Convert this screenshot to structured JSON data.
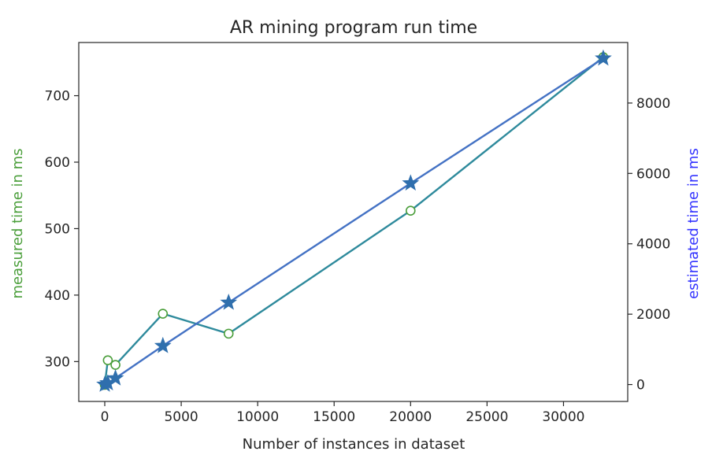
{
  "chart_data": {
    "type": "line",
    "title": "AR mining program run time",
    "xlabel": "Number of instances in dataset",
    "ylabel_left": "measured time in ms",
    "ylabel_right": "estimated time in ms",
    "xlim": [
      -1700,
      34200
    ],
    "ylim_left": [
      240,
      780
    ],
    "ylim_right": [
      -480,
      9720
    ],
    "x_ticks": [
      0,
      5000,
      10000,
      15000,
      20000,
      25000,
      30000
    ],
    "x_tick_labels": [
      "0",
      "5000",
      "10000",
      "15000",
      "20000",
      "25000",
      "30000"
    ],
    "y_left_ticks": [
      300,
      400,
      500,
      600,
      700
    ],
    "y_left_tick_labels": [
      "300",
      "400",
      "500",
      "600",
      "700"
    ],
    "y_right_ticks": [
      0,
      2000,
      4000,
      6000,
      8000
    ],
    "y_right_tick_labels": [
      "0",
      "2000",
      "4000",
      "6000",
      "8000"
    ],
    "grid": false,
    "series": [
      {
        "axis": "left",
        "marker": "circle",
        "color": "#2e8a9c",
        "marker_edge": "#4a9e3a",
        "x": [
          0,
          200,
          700,
          3800,
          8100,
          20000,
          32600
        ],
        "y": [
          265,
          302,
          295,
          372,
          342,
          527,
          758
        ]
      },
      {
        "axis": "right",
        "marker": "star",
        "color": "#4472c4",
        "marker_fill": "#2f6fad",
        "x": [
          0,
          200,
          700,
          3800,
          8100,
          20000,
          32600
        ],
        "y": [
          0,
          40,
          180,
          1100,
          2330,
          5720,
          9270
        ]
      }
    ],
    "colors": {
      "left_label": "#4a9e3a",
      "right_label": "#3333ff"
    }
  }
}
